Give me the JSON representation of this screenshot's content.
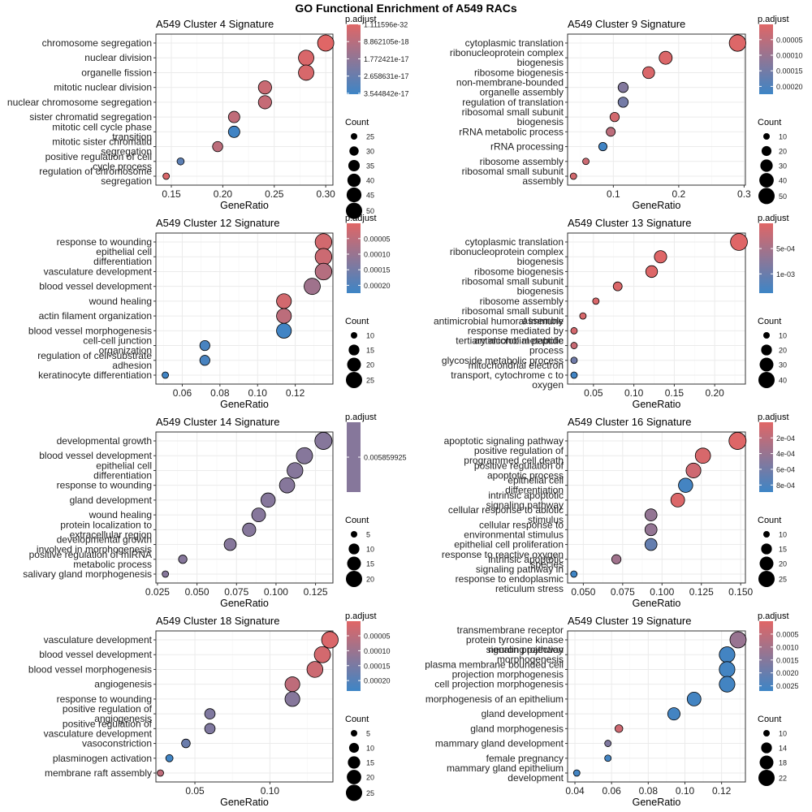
{
  "title": "GO Functional Enrichment of A549 RACs",
  "chart_data": [
    {
      "type": "scatter",
      "title": "A549 Cluster 4 Signature",
      "xlabel": "GeneRatio",
      "xlim": [
        0.135,
        0.307
      ],
      "xticks": [
        0.15,
        0.2,
        0.25,
        0.3
      ],
      "xtick_labels": [
        "0.15",
        "0.20",
        "0.25",
        "0.30"
      ],
      "categories": [
        "chromosome segregation",
        "nuclear division",
        "organelle fission",
        "mitotic nuclear division",
        "nuclear chromosome segregation",
        "sister chromatid segregation",
        "mitotic cell cycle phase\ntransition",
        "mitotic sister chromatid\nsegregation",
        "positive regulation of cell\ncycle process",
        "regulation of chromosome\nsegregation"
      ],
      "gene_ratio": [
        0.3,
        0.281,
        0.281,
        0.241,
        0.241,
        0.211,
        0.211,
        0.195,
        0.159,
        0.145
      ],
      "count": [
        50,
        47,
        47,
        40,
        40,
        35,
        35,
        32,
        26,
        24
      ],
      "p_adjust": [
        1.11e-32,
        1.5e-18,
        2e-18,
        5e-18,
        6e-18,
        7e-18,
        3.5e-17,
        8e-18,
        2.9e-17,
        1.5e-18
      ],
      "legend_color": {
        "title": "p.adjust",
        "tick_labels": [
          "1.111596e-32",
          "8.862105e-18",
          "1.772421e-17",
          "2.658631e-17",
          "3.544842e-17"
        ],
        "tick_values": [
          1.111596e-32,
          8.862105e-18,
          1.772421e-17,
          2.658631e-17,
          3.544842e-17
        ]
      },
      "legend_size": {
        "title": "Count",
        "values": [
          25,
          30,
          35,
          40,
          45,
          50
        ]
      }
    },
    {
      "type": "scatter",
      "title": "A549 Cluster 9 Signature",
      "xlabel": "GeneRatio",
      "xlim": [
        0.03,
        0.302
      ],
      "xticks": [
        0.1,
        0.2,
        0.3
      ],
      "xtick_labels": [
        "0.1",
        "0.2",
        "0.3"
      ],
      "categories": [
        "cytoplasmic translation",
        "ribonucleoprotein complex\nbiogenesis",
        "ribosome biogenesis",
        "non-membrane-bounded\norganelle assembly",
        "regulation of translation",
        "ribosomal small subunit\nbiogenesis",
        "rRNA metabolic process",
        "rRNA processing",
        "ribosome assembly",
        "ribosomal small subunit\nassembly"
      ],
      "gene_ratio": [
        0.29,
        0.18,
        0.154,
        0.115,
        0.115,
        0.102,
        0.096,
        0.084,
        0.058,
        0.039
      ],
      "count": [
        52,
        33,
        28,
        21,
        21,
        18,
        17,
        15,
        10,
        7
      ],
      "p_adjust": [
        5e-06,
        8e-06,
        1e-05,
        0.00013,
        0.00015,
        2e-05,
        5e-05,
        0.00022,
        3e-05,
        2e-05
      ],
      "legend_color": {
        "title": "p.adjust",
        "tick_labels": [
          "0.00005",
          "0.00010",
          "0.00015",
          "0.00020"
        ],
        "tick_values": [
          5e-05,
          0.0001,
          0.00015,
          0.0002
        ],
        "range": [
          1e-06,
          0.000225
        ]
      },
      "legend_size": {
        "title": "Count",
        "values": [
          10,
          20,
          30,
          40,
          50
        ]
      }
    },
    {
      "type": "scatter",
      "title": "A549 Cluster 12 Signature",
      "xlabel": "GeneRatio",
      "xlim": [
        0.046,
        0.14
      ],
      "xticks": [
        0.06,
        0.08,
        0.1,
        0.12
      ],
      "xtick_labels": [
        "0.06",
        "0.08",
        "0.10",
        "0.12"
      ],
      "categories": [
        "response to wounding",
        "epithelial cell\ndifferentiation",
        "vasculature development",
        "blood vessel development",
        "wound healing",
        "actin filament organization",
        "blood vessel morphogenesis",
        "cell-cell junction\norganization",
        "regulation of cell-substrate\nadhesion",
        "keratinocyte differentiation"
      ],
      "gene_ratio": [
        0.135,
        0.135,
        0.135,
        0.129,
        0.114,
        0.114,
        0.114,
        0.072,
        0.072,
        0.051
      ],
      "count": [
        26,
        26,
        26,
        25,
        22,
        22,
        22,
        14,
        14,
        10
      ],
      "p_adjust": [
        2e-05,
        3e-05,
        6e-05,
        9e-05,
        2e-05,
        5e-05,
        0.00022,
        0.00021,
        0.00021,
        0.00022
      ],
      "legend_color": {
        "title": "p.adjust",
        "tick_labels": [
          "0.00005",
          "0.00010",
          "0.00015",
          "0.00020"
        ],
        "tick_values": [
          5e-05,
          0.0001,
          0.00015,
          0.0002
        ],
        "range": [
          1e-06,
          0.000225
        ]
      },
      "legend_size": {
        "title": "Count",
        "values": [
          10,
          15,
          20,
          25
        ]
      }
    },
    {
      "type": "scatter",
      "title": "A549 Cluster 13 Signature",
      "xlabel": "GeneRatio",
      "xlim": [
        0.018,
        0.238
      ],
      "xticks": [
        0.05,
        0.1,
        0.15,
        0.2
      ],
      "xtick_labels": [
        "0.05",
        "0.10",
        "0.15",
        "0.20"
      ],
      "categories": [
        "cytoplasmic translation",
        "ribonucleoprotein complex\nbiogenesis",
        "ribosome biogenesis",
        "ribosomal small subunit\nbiogenesis",
        "ribosome assembly",
        "ribosomal small subunit\nassembly",
        "antimicrobial humoral immune\nresponse mediated by\nantimicrobial peptide",
        "tertiary alcohol metabolic\nprocess",
        "glycoside metabolic process",
        "mitochondrial electron\ntransport, cytochrome c to\noxygen"
      ],
      "gene_ratio": [
        0.23,
        0.133,
        0.122,
        0.08,
        0.053,
        0.037,
        0.026,
        0.026,
        0.026,
        0.026
      ],
      "count": [
        43,
        25,
        23,
        15,
        10,
        7,
        5,
        5,
        5,
        5
      ],
      "p_adjust": [
        1e-05,
        2e-05,
        3e-05,
        4e-05,
        6e-05,
        8e-05,
        0.0001,
        0.0002,
        0.00095,
        0.00135
      ],
      "legend_color": {
        "title": "p.adjust",
        "tick_labels": [
          "5e-04",
          "1e-03"
        ],
        "tick_values": [
          0.0005,
          0.001
        ],
        "range": [
          1e-06,
          0.00138
        ]
      },
      "legend_size": {
        "title": "Count",
        "values": [
          10,
          20,
          30,
          40
        ]
      }
    },
    {
      "type": "scatter",
      "title": "A549 Cluster 14 Signature",
      "xlabel": "GeneRatio",
      "xlim": [
        0.024,
        0.136
      ],
      "xticks": [
        0.025,
        0.05,
        0.075,
        0.1,
        0.125
      ],
      "xtick_labels": [
        "0.025",
        "0.050",
        "0.075",
        "0.100",
        "0.125"
      ],
      "categories": [
        "developmental growth",
        "blood vessel development",
        "epithelial cell\ndifferentiation",
        "response to wounding",
        "gland development",
        "wound healing",
        "protein localization to\nextracellular region",
        "developmental growth\ninvolved in morphogenesis",
        "positive regulation of miRNA\nmetabolic process",
        "salivary gland morphogenesis"
      ],
      "gene_ratio": [
        0.13,
        0.118,
        0.112,
        0.107,
        0.095,
        0.089,
        0.083,
        0.071,
        0.041,
        0.03
      ],
      "count": [
        22,
        20,
        19,
        18,
        16,
        15,
        14,
        12,
        7,
        5
      ],
      "p_adjust": [
        0.005859925,
        0.005859925,
        0.005859925,
        0.005859925,
        0.005859925,
        0.005859925,
        0.005859925,
        0.005859925,
        0.005859925,
        0.005859925
      ],
      "legend_color": {
        "title": "p.adjust",
        "tick_labels": [
          "0.005859925"
        ],
        "tick_values": [
          0.005859925
        ],
        "single": true
      },
      "legend_size": {
        "title": "Count",
        "values": [
          5,
          10,
          15,
          20
        ]
      }
    },
    {
      "type": "scatter",
      "title": "A549 Cluster 16 Signature",
      "xlabel": "GeneRatio",
      "xlim": [
        0.04,
        0.153
      ],
      "xticks": [
        0.05,
        0.075,
        0.1,
        0.125,
        0.15
      ],
      "xtick_labels": [
        "0.050",
        "0.075",
        "0.100",
        "0.125",
        "0.150"
      ],
      "categories": [
        "apoptotic signaling pathway",
        "positive regulation of\nprogrammed cell death",
        "positive regulation of\napoptotic process",
        "epithelial cell\ndifferentiation",
        "intrinsic apoptotic\nsignaling pathway",
        "cellular response to abiotic\nstimulus",
        "cellular response to\nenvironmental stimulus",
        "epithelial cell proliferation",
        "response to reactive oxygen\nspecies",
        "intrinsic apoptotic\nsignaling pathway in\nresponse to endoplasmic\nreticulum stress"
      ],
      "gene_ratio": [
        0.148,
        0.126,
        0.12,
        0.115,
        0.11,
        0.093,
        0.093,
        0.093,
        0.071,
        0.044
      ],
      "count": [
        27,
        23,
        22,
        21,
        20,
        17,
        17,
        17,
        13,
        8
      ],
      "p_adjust": [
        1e-05,
        5e-05,
        0.0001,
        0.00085,
        3e-05,
        0.00042,
        0.00042,
        0.00068,
        0.00035,
        0.00088
      ],
      "legend_color": {
        "title": "p.adjust",
        "tick_labels": [
          "2e-04",
          "4e-04",
          "6e-04",
          "8e-04"
        ],
        "tick_values": [
          0.0002,
          0.0004,
          0.0006,
          0.0008
        ],
        "range": [
          1e-06,
          0.00089
        ]
      },
      "legend_size": {
        "title": "Count",
        "values": [
          10,
          15,
          20,
          25
        ]
      }
    },
    {
      "type": "scatter",
      "title": "A549 Cluster 18 Signature",
      "xlabel": "GeneRatio",
      "xlim": [
        0.024,
        0.142
      ],
      "xticks": [
        0.05,
        0.1
      ],
      "xtick_labels": [
        "0.05",
        "0.10"
      ],
      "categories": [
        "vasculature development",
        "blood vessel development",
        "blood vessel morphogenesis",
        "angiogenesis",
        "response to wounding",
        "positive regulation of\nangiogenesis",
        "positive regulation of\nvasculature development",
        "vasoconstriction",
        "plasminogen activation",
        "membrane raft assembly"
      ],
      "gene_ratio": [
        0.14,
        0.135,
        0.13,
        0.115,
        0.115,
        0.06,
        0.06,
        0.044,
        0.033,
        0.027
      ],
      "count": [
        26,
        25,
        24,
        21,
        21,
        11,
        11,
        8,
        6,
        5
      ],
      "p_adjust": [
        1e-05,
        2e-05,
        3e-05,
        5e-05,
        0.00013,
        0.00014,
        0.00014,
        0.00017,
        0.00023,
        5e-05
      ],
      "legend_color": {
        "title": "p.adjust",
        "tick_labels": [
          "0.00005",
          "0.00010",
          "0.00015",
          "0.00020"
        ],
        "tick_values": [
          5e-05,
          0.0001,
          0.00015,
          0.0002
        ],
        "range": [
          1e-06,
          0.000235
        ]
      },
      "legend_size": {
        "title": "Count",
        "values": [
          5,
          10,
          15,
          20,
          25
        ]
      }
    },
    {
      "type": "scatter",
      "title": "A549 Cluster 19 Signature",
      "xlabel": "GeneRatio",
      "xlim": [
        0.036,
        0.133
      ],
      "xticks": [
        0.04,
        0.06,
        0.08,
        0.1,
        0.12
      ],
      "xtick_labels": [
        "0.04",
        "0.06",
        "0.08",
        "0.10",
        "0.12"
      ],
      "categories": [
        "transmembrane receptor\nprotein tyrosine kinase\nsignaling pathway",
        "neuron projection\nmorphogenesis",
        "plasma membrane bounded cell\nprojection morphogenesis",
        "cell projection morphogenesis",
        "morphogenesis of an epithelium",
        "gland development",
        "gland morphogenesis",
        "mammary gland development",
        "female pregnancy",
        "mammary gland epithelium\ndevelopment"
      ],
      "gene_ratio": [
        0.129,
        0.123,
        0.123,
        0.123,
        0.105,
        0.094,
        0.064,
        0.058,
        0.058,
        0.041
      ],
      "count": [
        22,
        21,
        21,
        21,
        18,
        16,
        11,
        10,
        10,
        7
      ],
      "p_adjust": [
        0.0012,
        0.0026,
        0.0026,
        0.0026,
        0.0026,
        0.0026,
        0.0003,
        0.0016,
        0.0026,
        0.0026
      ],
      "legend_color": {
        "title": "p.adjust",
        "tick_labels": [
          "0.0005",
          "0.0010",
          "0.0015",
          "0.0020",
          "0.0025"
        ],
        "tick_values": [
          0.0005,
          0.001,
          0.0015,
          0.002,
          0.0025
        ],
        "range": [
          1e-06,
          0.0027
        ]
      },
      "legend_size": {
        "title": "Count",
        "values": [
          10,
          14,
          18,
          22
        ]
      }
    }
  ],
  "colors": {
    "low_p": "#E06666",
    "high_p": "#3D85C6",
    "panel_border": "#333333",
    "grid_major": "#EBEBEB",
    "grid_minor": "#F5F5F5",
    "point_stroke": "#000000",
    "text": "#000000"
  }
}
